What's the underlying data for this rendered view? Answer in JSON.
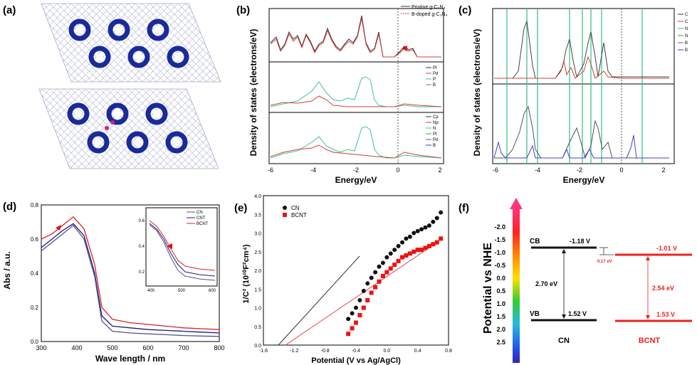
{
  "panels": {
    "a": {
      "label": "(a)"
    },
    "b": {
      "label": "(b)",
      "ylabel": "Density of states (electrons/eV)",
      "xlabel": "Energy/eV",
      "xticks": [
        "-6",
        "-4",
        "-2",
        "0",
        "2"
      ],
      "legend_top": [
        "Pristine g-C₃N₄",
        "B-doped g-C₃N₄"
      ],
      "legend_mid": [
        "Pt",
        "Pd",
        "P",
        "B"
      ],
      "legend_bot": [
        "Cp",
        "Np",
        "N",
        "Pt",
        "Pd",
        "B"
      ]
    },
    "c": {
      "label": "(c)",
      "ylabel": "Density of states (electrons/eV)",
      "xlabel": "Energy/eV",
      "xticks": [
        "-6",
        "-4",
        "-2",
        "0",
        "2"
      ],
      "legend": [
        "C",
        "C",
        "N",
        "N",
        "B",
        "B"
      ]
    },
    "d": {
      "label": "(d)",
      "ylabel": "Abs / a.u.",
      "xlabel": "Wave length / nm",
      "xticks": [
        "300",
        "400",
        "500",
        "600",
        "700",
        "800"
      ],
      "yticks": [
        "0.0",
        "0.2",
        "0.4",
        "0.6",
        "0.8"
      ],
      "inset_legend": [
        "CN",
        "CNT",
        "BCNT"
      ],
      "inset_xticks": [
        "400",
        "500",
        "600"
      ],
      "inset_yticks": [
        "0.6",
        "0.4",
        "0.2"
      ]
    },
    "e": {
      "label": "(e)",
      "ylabel": "1/C² (10¹⁰F²cm⁴)",
      "xlabel": "Potential (V vs Ag/AgCl)",
      "xticks": [
        "-1.6",
        "-1.2",
        "-0.8",
        "-0.4",
        "0.0",
        "0.4",
        "0.8"
      ],
      "yticks": [
        "0.0",
        "0.5",
        "1.0",
        "1.5",
        "2.0",
        "2.5",
        "3.0",
        "3.5",
        "4.0"
      ],
      "legend": [
        "CN",
        "BCNT"
      ]
    },
    "f": {
      "label": "(f)",
      "ylabel": "Potential vs NHE",
      "yticks": [
        "-2.0",
        "-1.5",
        "-1.0",
        "-0.5",
        "0.0",
        "0.5",
        "1.0",
        "1.5",
        "2.0",
        "2.5"
      ],
      "cb_label": "CB",
      "vb_label": "VB",
      "cn_cb": "-1.18 V",
      "cn_vb": "1.52 V",
      "cn_gap": "2.70 eV",
      "bcnt_cb": "-1.01 V",
      "bcnt_vb": "1.53 V",
      "bcnt_gap": "2.54 eV",
      "offset": "0.17 eV",
      "cn_name": "CN",
      "bcnt_name": "BCNT"
    }
  },
  "chart_data": [
    {
      "type": "line",
      "panel": "d",
      "xlabel": "Wave length / nm",
      "ylabel": "Abs / a.u.",
      "xlim": [
        300,
        800
      ],
      "ylim": [
        0,
        0.8
      ],
      "series": [
        {
          "color": "#e02020",
          "x": [
            300,
            330,
            360,
            390,
            420,
            450,
            470,
            500,
            550,
            600,
            650,
            700,
            750,
            800
          ],
          "values": [
            0.6,
            0.63,
            0.68,
            0.73,
            0.66,
            0.45,
            0.2,
            0.13,
            0.11,
            0.1,
            0.09,
            0.08,
            0.075,
            0.07
          ]
        },
        {
          "color": "#1a1a80",
          "x": [
            300,
            330,
            360,
            390,
            420,
            450,
            470,
            500,
            550,
            600,
            650,
            700,
            750,
            800
          ],
          "values": [
            0.55,
            0.6,
            0.65,
            0.69,
            0.62,
            0.4,
            0.15,
            0.09,
            0.08,
            0.07,
            0.065,
            0.06,
            0.055,
            0.05
          ]
        },
        {
          "color": "#555588",
          "x": [
            300,
            330,
            360,
            390,
            420,
            450,
            470,
            500,
            550,
            600,
            650,
            700,
            750,
            800
          ],
          "values": [
            0.53,
            0.58,
            0.63,
            0.68,
            0.6,
            0.38,
            0.12,
            0.06,
            0.05,
            0.045,
            0.04,
            0.035,
            0.032,
            0.03
          ]
        }
      ]
    },
    {
      "type": "scatter",
      "panel": "e",
      "xlabel": "Potential (V vs Ag/AgCl)",
      "ylabel": "1/C² (10¹⁰F²cm⁴)",
      "xlim": [
        -1.6,
        0.8
      ],
      "ylim": [
        0,
        4
      ],
      "series": [
        {
          "name": "CN",
          "color": "#111111",
          "x": [
            -0.5,
            -0.45,
            -0.4,
            -0.35,
            -0.3,
            -0.25,
            -0.2,
            -0.15,
            -0.1,
            -0.05,
            0.0,
            0.05,
            0.1,
            0.15,
            0.2,
            0.25,
            0.3,
            0.35,
            0.4,
            0.45,
            0.5,
            0.55,
            0.6,
            0.65,
            0.7
          ],
          "values": [
            0.7,
            0.85,
            1.0,
            1.2,
            1.45,
            1.65,
            1.8,
            1.95,
            2.1,
            2.2,
            2.35,
            2.45,
            2.55,
            2.65,
            2.75,
            2.85,
            2.9,
            3.0,
            3.05,
            3.1,
            3.15,
            3.2,
            3.3,
            3.4,
            3.55
          ]
        },
        {
          "name": "BCNT",
          "color": "#ee1111",
          "x": [
            -0.5,
            -0.45,
            -0.4,
            -0.35,
            -0.3,
            -0.25,
            -0.2,
            -0.15,
            -0.1,
            -0.05,
            0.0,
            0.05,
            0.1,
            0.15,
            0.2,
            0.25,
            0.3,
            0.35,
            0.4,
            0.45,
            0.5,
            0.55,
            0.6,
            0.65,
            0.7
          ],
          "values": [
            0.3,
            0.45,
            0.6,
            0.8,
            1.0,
            1.2,
            1.4,
            1.55,
            1.7,
            1.85,
            1.95,
            2.05,
            2.15,
            2.25,
            2.35,
            2.4,
            2.45,
            2.5,
            2.55,
            2.55,
            2.6,
            2.65,
            2.7,
            2.75,
            2.85
          ]
        }
      ]
    },
    {
      "type": "line",
      "panel": "f",
      "ylabel": "Potential vs NHE",
      "ylim": [
        2.5,
        -2.0
      ],
      "series": [
        {
          "name": "CN",
          "color": "#111111",
          "cb": -1.18,
          "vb": 1.52,
          "gap": 2.7
        },
        {
          "name": "BCNT",
          "color": "#ee2222",
          "cb": -1.01,
          "vb": 1.53,
          "gap": 2.54
        }
      ]
    }
  ]
}
